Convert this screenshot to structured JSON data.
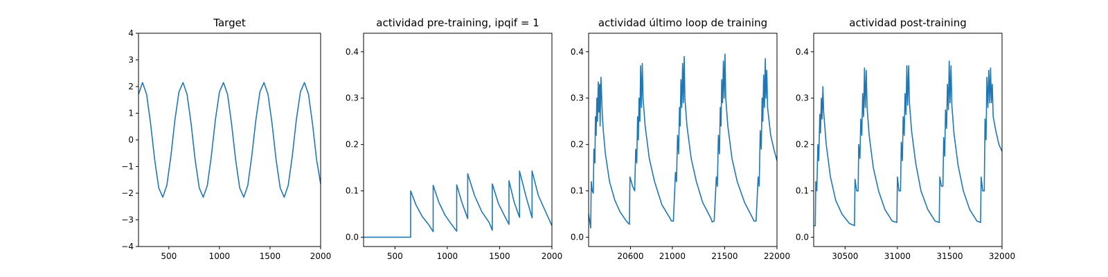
{
  "colors": {
    "series": "#1f77b4",
    "axes": "#000000",
    "background": "#ffffff"
  },
  "chart_data": [
    {
      "type": "line",
      "title": "Target",
      "xlabel": "",
      "ylabel": "",
      "xlim": [
        200,
        2000
      ],
      "ylim": [
        -4,
        4
      ],
      "xticks": [
        500,
        1000,
        1500,
        2000
      ],
      "xtick_labels": [
        "500",
        "1000",
        "1500",
        "2000"
      ],
      "yticks": [
        -4,
        -3,
        -2,
        -1,
        0,
        1,
        2,
        3,
        4
      ],
      "ytick_labels": [
        "−4",
        "−3",
        "−2",
        "−1",
        "0",
        "1",
        "2",
        "3",
        "4"
      ],
      "grid": false,
      "series": [
        {
          "x": [
            200,
            240,
            280,
            320,
            360,
            400,
            440,
            480,
            520,
            560,
            600,
            640,
            680,
            720,
            760,
            800,
            840,
            880,
            920,
            960,
            1000,
            1040,
            1080,
            1120,
            1160,
            1200,
            1240,
            1280,
            1320,
            1360,
            1400,
            1440,
            1480,
            1520,
            1560,
            1600,
            1640,
            1680,
            1720,
            1760,
            1800,
            1840,
            1880,
            1920,
            1960,
            2000
          ],
          "y": [
            1.71,
            2.15,
            1.71,
            0.6,
            -0.75,
            -1.8,
            -2.15,
            -1.71,
            -0.6,
            0.75,
            1.8,
            2.15,
            1.71,
            0.6,
            -0.75,
            -1.8,
            -2.15,
            -1.71,
            -0.6,
            0.75,
            1.8,
            2.15,
            1.71,
            0.6,
            -0.75,
            -1.8,
            -2.15,
            -1.71,
            -0.6,
            0.75,
            1.8,
            2.15,
            1.71,
            0.6,
            -0.75,
            -1.8,
            -2.15,
            -1.71,
            -0.6,
            0.75,
            1.8,
            2.15,
            1.71,
            0.6,
            -0.75,
            -1.65
          ]
        }
      ]
    },
    {
      "type": "line",
      "title": "actividad pre-training, ipqif = 1",
      "xlabel": "",
      "ylabel": "",
      "xlim": [
        200,
        2000
      ],
      "ylim": [
        -0.02,
        0.44
      ],
      "xticks": [
        500,
        1000,
        1500,
        2000
      ],
      "xtick_labels": [
        "500",
        "1000",
        "1500",
        "2000"
      ],
      "yticks": [
        0.0,
        0.1,
        0.2,
        0.3,
        0.4
      ],
      "ytick_labels": [
        "0.0",
        "0.1",
        "0.2",
        "0.3",
        "0.4"
      ],
      "grid": false,
      "series": [
        {
          "x": [
            200,
            650,
            650,
            700,
            760,
            820,
            865,
            865,
            920,
            980,
            1040,
            1090,
            1090,
            1140,
            1195,
            1195,
            1260,
            1330,
            1400,
            1430,
            1430,
            1490,
            1550,
            1590,
            1590,
            1640,
            1690,
            1690,
            1750,
            1810,
            1810,
            1870,
            1940,
            2000
          ],
          "y": [
            0.0,
            0.0,
            0.1,
            0.07,
            0.045,
            0.028,
            0.012,
            0.112,
            0.075,
            0.047,
            0.028,
            0.013,
            0.113,
            0.075,
            0.04,
            0.137,
            0.09,
            0.055,
            0.032,
            0.015,
            0.115,
            0.072,
            0.045,
            0.028,
            0.122,
            0.075,
            0.043,
            0.143,
            0.09,
            0.042,
            0.143,
            0.09,
            0.055,
            0.025
          ]
        }
      ]
    },
    {
      "type": "line",
      "title": "actividad último loop de training",
      "xlabel": "",
      "ylabel": "",
      "xlim": [
        20200,
        22000
      ],
      "ylim": [
        -0.02,
        0.44
      ],
      "xticks": [
        20600,
        21000,
        21500,
        22000
      ],
      "xtick_labels": [
        "20600",
        "21000",
        "21500",
        "22000"
      ],
      "yticks": [
        0.0,
        0.1,
        0.2,
        0.3,
        0.4
      ],
      "ytick_labels": [
        "0.0",
        "0.1",
        "0.2",
        "0.3",
        "0.4"
      ],
      "grid": false,
      "series": [
        {
          "x": [
            20200,
            20220,
            20225,
            20235,
            20245,
            20250,
            20260,
            20265,
            20272,
            20278,
            20285,
            20292,
            20298,
            20305,
            20310,
            20318,
            20325,
            20332,
            20340,
            20360,
            20400,
            20450,
            20500,
            20560,
            20590,
            20595,
            20620,
            20640,
            20650,
            20660,
            20668,
            20675,
            20682,
            20690,
            20697,
            20705,
            20713,
            20720,
            20740,
            20780,
            20830,
            20900,
            20980,
            20990,
            21010,
            21030,
            21040,
            21050,
            21060,
            21068,
            21075,
            21082,
            21090,
            21098,
            21105,
            21113,
            21120,
            21140,
            21180,
            21230,
            21290,
            21370,
            21380,
            21400,
            21420,
            21430,
            21440,
            21450,
            21458,
            21465,
            21472,
            21480,
            21488,
            21495,
            21503,
            21510,
            21530,
            21570,
            21620,
            21690,
            21770,
            21780,
            21800,
            21820,
            21830,
            21840,
            21850,
            21858,
            21865,
            21872,
            21880,
            21888,
            21895,
            21903,
            21910,
            21940,
            21970,
            22000
          ],
          "y": [
            0.05,
            0.02,
            0.12,
            0.1,
            0.095,
            0.19,
            0.16,
            0.26,
            0.22,
            0.3,
            0.25,
            0.335,
            0.27,
            0.33,
            0.24,
            0.345,
            0.3,
            0.26,
            0.23,
            0.18,
            0.12,
            0.08,
            0.055,
            0.035,
            0.028,
            0.13,
            0.11,
            0.1,
            0.19,
            0.16,
            0.26,
            0.21,
            0.3,
            0.25,
            0.37,
            0.28,
            0.375,
            0.3,
            0.24,
            0.17,
            0.12,
            0.07,
            0.04,
            0.035,
            0.035,
            0.14,
            0.12,
            0.22,
            0.18,
            0.28,
            0.24,
            0.34,
            0.28,
            0.375,
            0.29,
            0.39,
            0.3,
            0.24,
            0.17,
            0.12,
            0.075,
            0.04,
            0.033,
            0.035,
            0.13,
            0.11,
            0.22,
            0.18,
            0.28,
            0.24,
            0.34,
            0.29,
            0.38,
            0.3,
            0.395,
            0.3,
            0.24,
            0.17,
            0.12,
            0.075,
            0.04,
            0.035,
            0.035,
            0.13,
            0.11,
            0.23,
            0.19,
            0.3,
            0.25,
            0.35,
            0.28,
            0.385,
            0.3,
            0.36,
            0.28,
            0.22,
            0.19,
            0.165
          ]
        }
      ]
    },
    {
      "type": "line",
      "title": "actividad post-training",
      "xlabel": "",
      "ylabel": "",
      "xlim": [
        30200,
        32000
      ],
      "ylim": [
        -0.02,
        0.44
      ],
      "xticks": [
        30500,
        31000,
        31500,
        32000
      ],
      "xtick_labels": [
        "30500",
        "31000",
        "31500",
        "32000"
      ],
      "yticks": [
        0.0,
        0.1,
        0.2,
        0.3,
        0.4
      ],
      "ytick_labels": [
        "0.0",
        "0.1",
        "0.2",
        "0.3",
        "0.4"
      ],
      "grid": false,
      "series": [
        {
          "x": [
            30200,
            30215,
            30220,
            30230,
            30240,
            30248,
            30258,
            30265,
            30273,
            30280,
            30288,
            30295,
            30320,
            30360,
            30410,
            30470,
            30540,
            30590,
            30595,
            30610,
            30625,
            30630,
            30642,
            30650,
            30660,
            30668,
            30677,
            30685,
            30693,
            30702,
            30710,
            30730,
            30770,
            30820,
            30880,
            30950,
            30995,
            31000,
            31015,
            31030,
            31037,
            31048,
            31055,
            31065,
            31073,
            31082,
            31090,
            31098,
            31107,
            31115,
            31135,
            31175,
            31225,
            31290,
            31360,
            31400,
            31405,
            31420,
            31435,
            31442,
            31452,
            31460,
            31470,
            31478,
            31487,
            31495,
            31503,
            31512,
            31520,
            31540,
            31580,
            31630,
            31690,
            31760,
            31795,
            31800,
            31815,
            31830,
            31837,
            31847,
            31855,
            31865,
            31873,
            31882,
            31890,
            31898,
            31907,
            31915,
            31940,
            31970,
            32000
          ],
          "y": [
            0.025,
            0.025,
            0.12,
            0.1,
            0.2,
            0.165,
            0.265,
            0.225,
            0.3,
            0.255,
            0.325,
            0.27,
            0.2,
            0.13,
            0.08,
            0.05,
            0.03,
            0.025,
            0.125,
            0.1,
            0.1,
            0.2,
            0.17,
            0.255,
            0.22,
            0.31,
            0.26,
            0.365,
            0.28,
            0.36,
            0.28,
            0.22,
            0.15,
            0.1,
            0.06,
            0.035,
            0.032,
            0.13,
            0.1,
            0.1,
            0.205,
            0.165,
            0.26,
            0.22,
            0.31,
            0.265,
            0.37,
            0.285,
            0.37,
            0.29,
            0.23,
            0.16,
            0.1,
            0.06,
            0.035,
            0.032,
            0.13,
            0.11,
            0.11,
            0.215,
            0.175,
            0.275,
            0.235,
            0.33,
            0.275,
            0.38,
            0.29,
            0.37,
            0.285,
            0.225,
            0.155,
            0.1,
            0.06,
            0.035,
            0.032,
            0.13,
            0.1,
            0.1,
            0.255,
            0.21,
            0.345,
            0.28,
            0.36,
            0.29,
            0.365,
            0.29,
            0.33,
            0.26,
            0.23,
            0.2,
            0.185
          ]
        }
      ]
    }
  ]
}
